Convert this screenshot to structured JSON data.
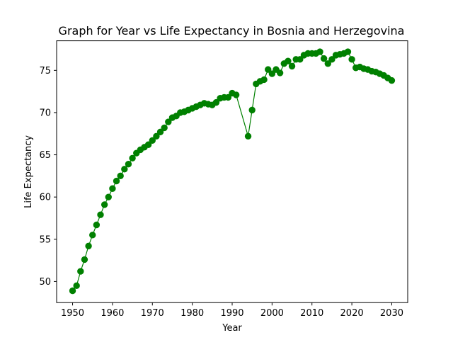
{
  "chart_data": {
    "type": "line",
    "title": "Graph for Year vs Life Expectancy in Bosnia and Herzegovina",
    "xlabel": "Year",
    "ylabel": "Life Expectancy",
    "xlim": [
      1946,
      2034
    ],
    "ylim": [
      47.5,
      78.5
    ],
    "xticks": [
      1950,
      1960,
      1970,
      1980,
      1990,
      2000,
      2010,
      2020,
      2030
    ],
    "yticks": [
      50,
      55,
      60,
      65,
      70,
      75
    ],
    "grid": false,
    "colors": {
      "series": "#008000"
    },
    "series": [
      {
        "x": [
          1950,
          1951,
          1952,
          1953,
          1954,
          1955,
          1956,
          1957,
          1958,
          1959,
          1960,
          1961,
          1962,
          1963,
          1964,
          1965,
          1966,
          1967,
          1968,
          1969,
          1970,
          1971,
          1972,
          1973,
          1974,
          1975,
          1976,
          1977,
          1978,
          1979,
          1980,
          1981,
          1982,
          1983,
          1984,
          1985,
          1986,
          1987,
          1988,
          1989,
          1990,
          1991,
          1994,
          1995,
          1996,
          1997,
          1998,
          1999,
          2000,
          2001,
          2002,
          2003,
          2004,
          2005,
          2006,
          2007,
          2008,
          2009,
          2010,
          2011,
          2012,
          2013,
          2014,
          2015,
          2016,
          2017,
          2018,
          2019,
          2020,
          2021,
          2022,
          2023,
          2024,
          2025,
          2026,
          2027,
          2028,
          2029,
          2030
        ],
        "values": [
          48.9,
          49.5,
          51.2,
          52.6,
          54.2,
          55.5,
          56.7,
          57.9,
          59.1,
          60.0,
          61.0,
          61.9,
          62.5,
          63.3,
          63.9,
          64.6,
          65.2,
          65.6,
          65.9,
          66.2,
          66.7,
          67.2,
          67.7,
          68.2,
          68.9,
          69.4,
          69.6,
          70.0,
          70.1,
          70.3,
          70.5,
          70.7,
          70.9,
          71.1,
          71.0,
          70.9,
          71.2,
          71.7,
          71.8,
          71.8,
          72.3,
          72.1,
          67.2,
          70.3,
          73.4,
          73.7,
          73.9,
          75.1,
          74.6,
          75.1,
          74.7,
          75.8,
          76.1,
          75.5,
          76.3,
          76.3,
          76.8,
          77.0,
          77.0,
          77.0,
          77.2,
          76.4,
          75.8,
          76.3,
          76.8,
          76.9,
          77.0,
          77.2,
          76.3,
          75.3,
          75.4,
          75.2,
          75.1,
          74.9,
          74.8,
          74.6,
          74.4,
          74.1,
          73.8
        ]
      }
    ]
  }
}
